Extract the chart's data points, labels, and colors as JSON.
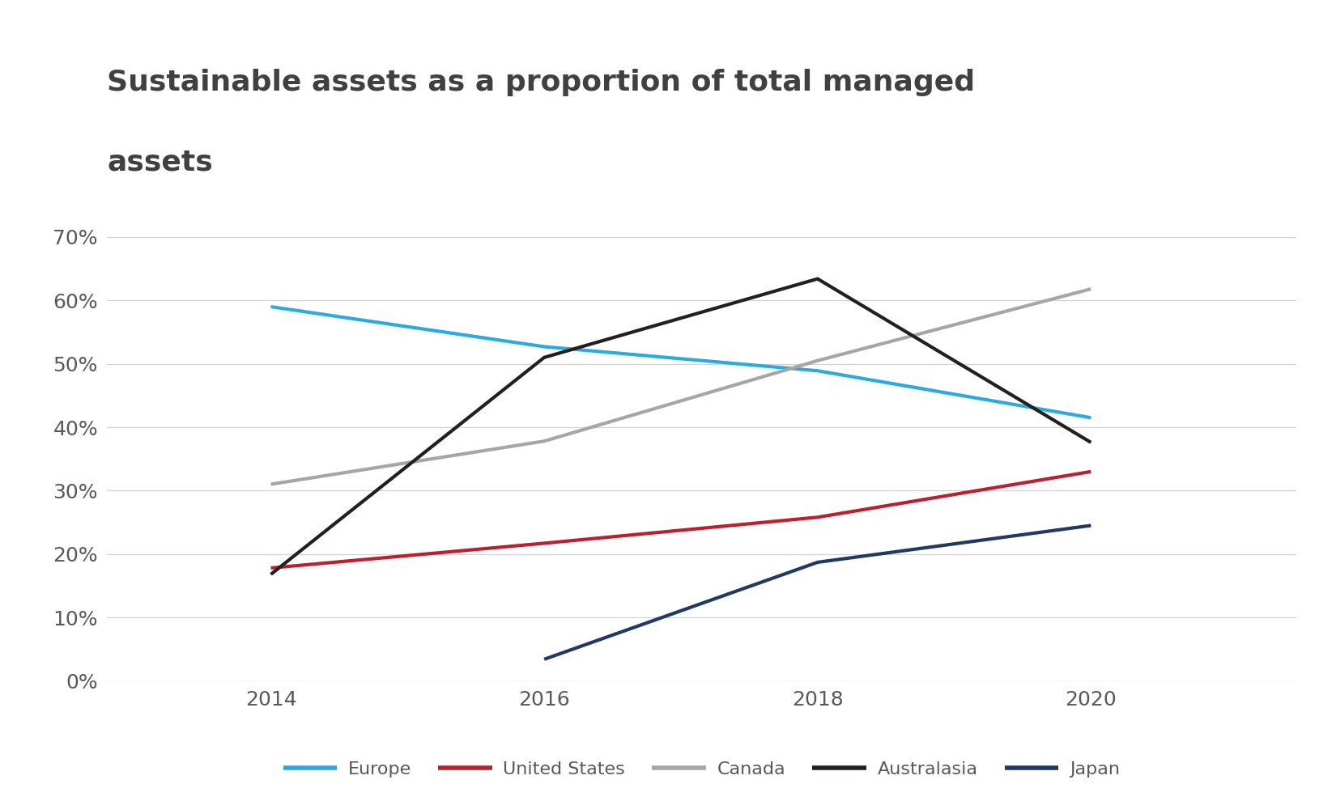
{
  "title_line1": "Sustainable assets as a proportion of total managed",
  "title_line2": "assets",
  "years": [
    2014,
    2016,
    2018,
    2020
  ],
  "series": [
    {
      "name": "Europe",
      "color": "#29ABE2",
      "values": [
        0.59,
        0.527,
        0.489,
        0.415
      ]
    },
    {
      "name": "United States",
      "color": "#BE1E2D",
      "values": [
        0.178,
        0.217,
        0.258,
        0.33
      ]
    },
    {
      "name": "Canada",
      "color": "#A6A6A6",
      "values": [
        0.31,
        0.378,
        0.505,
        0.618
      ]
    },
    {
      "name": "Australasia",
      "color": "#231F20",
      "values": [
        0.168,
        0.51,
        0.634,
        0.376
      ]
    },
    {
      "name": "Japan",
      "color": "#1F3864",
      "values": [
        null,
        0.034,
        0.187,
        0.245
      ]
    }
  ],
  "ylim": [
    0,
    0.72
  ],
  "yticks": [
    0.0,
    0.1,
    0.2,
    0.3,
    0.4,
    0.5,
    0.6,
    0.7
  ],
  "xticks": [
    2014,
    2016,
    2018,
    2020
  ],
  "background_color": "#FFFFFF",
  "grid_color": "#D3D3D3",
  "title_fontsize": 26,
  "tick_fontsize": 18,
  "legend_fontsize": 16,
  "line_width": 3.0,
  "title_color": "#404040",
  "tick_color": "#595959"
}
